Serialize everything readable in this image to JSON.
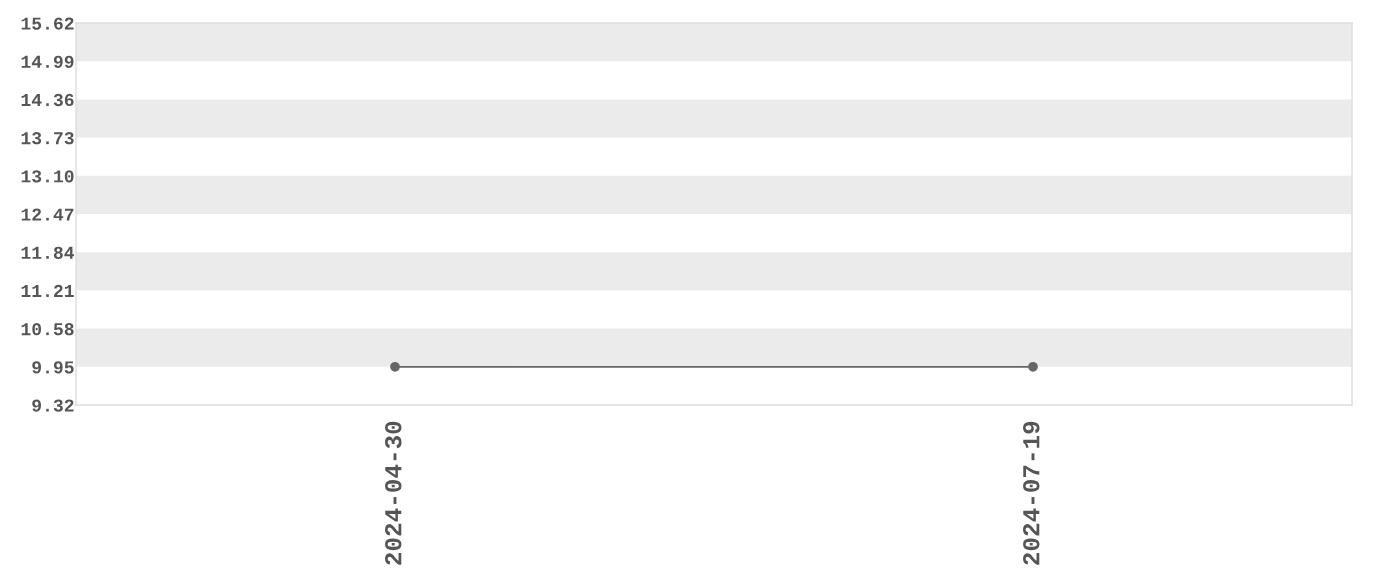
{
  "chart_data": {
    "type": "line",
    "categories": [
      "2024-04-30",
      "2024-07-19"
    ],
    "series": [
      {
        "color": "#666666",
        "values": [
          9.95,
          9.95
        ]
      }
    ],
    "ylim": [
      9.32,
      15.62
    ],
    "yticks": [
      9.32,
      9.95,
      10.58,
      11.21,
      11.84,
      12.47,
      {
        "value": 13.1,
        "label": "13.10"
      },
      13.73,
      14.36,
      14.99,
      15.62
    ],
    "bands": [
      {
        "axis": "y",
        "from": 14.99,
        "to": 15.62,
        "color": "#ebebeb"
      },
      {
        "axis": "y",
        "from": 13.73,
        "to": 14.36,
        "color": "#ebebeb"
      },
      {
        "axis": "y",
        "from": 12.47,
        "to": 13.1,
        "color": "#ebebeb"
      },
      {
        "axis": "y",
        "from": 11.21,
        "to": 11.84,
        "color": "#ebebeb"
      },
      {
        "axis": "y",
        "from": 9.95,
        "to": 10.58,
        "color": "#ebebeb"
      }
    ],
    "marker": "circle",
    "line_style": "solid"
  }
}
